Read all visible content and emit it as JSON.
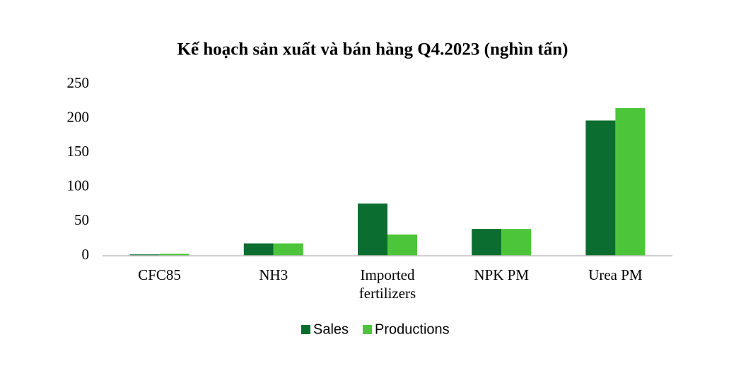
{
  "chart_data": {
    "type": "bar",
    "title": "Kế hoạch sản xuất và bán hàng Q4.2023 (nghìn tấn)",
    "categories": [
      "CFC85",
      "NH3",
      "Imported fertilizers",
      "NPK PM",
      "Urea PM"
    ],
    "series": [
      {
        "name": "Sales",
        "color": "#0b6e30",
        "values": [
          2,
          18,
          76,
          39,
          197
        ]
      },
      {
        "name": "Productions",
        "color": "#4dc53a",
        "values": [
          3,
          18,
          31,
          39,
          215
        ]
      }
    ],
    "ylim": [
      0,
      250
    ],
    "yticks": [
      0,
      50,
      100,
      150,
      200,
      250
    ],
    "grid": false,
    "legend": "bottom"
  }
}
